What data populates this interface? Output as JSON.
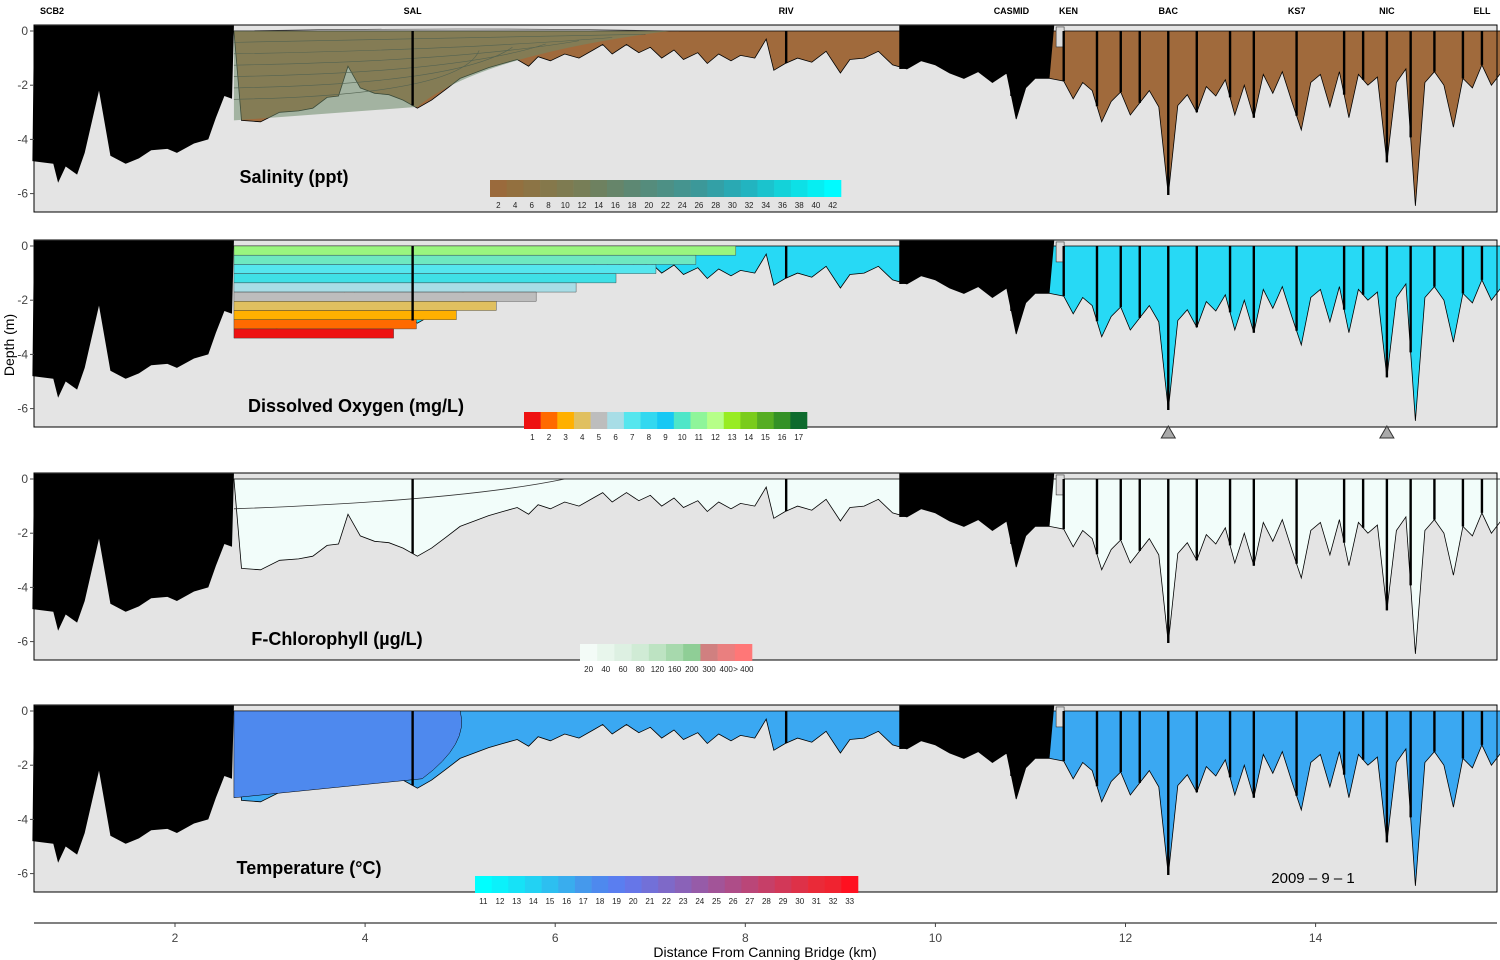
{
  "chart_data": {
    "type": "area",
    "xlabel": "Distance From Canning Bridge (km)",
    "ylabel": "Depth (m)",
    "xlim": [
      0.5,
      15.95
    ],
    "ylim": [
      -7,
      0.3
    ],
    "x_ticks": [
      "2",
      "4",
      "6",
      "8",
      "10",
      "12",
      "14"
    ],
    "x_tick_values": [
      2,
      4,
      6,
      8,
      10,
      12,
      14
    ],
    "y_ticks": [
      "0",
      "-2",
      "-4",
      "-6"
    ],
    "y_tick_values": [
      0,
      -2,
      -4,
      -6
    ],
    "date_label": "2009 – 9 – 1",
    "colors": {
      "background": "#e4e4e4",
      "mask": "#000000",
      "salinity_fresh": "#a06a3c",
      "oxygen_surface": "#27d9f5",
      "chlorophyll": "#f2fdfa",
      "temperature": "#3aa8f2"
    },
    "sites": [
      {
        "name": "SCB2",
        "km": 0.62
      },
      {
        "name": "SAL",
        "km": 4.5
      },
      {
        "name": "RIV",
        "km": 8.43
      },
      {
        "name": "CASMID",
        "km": 10.8
      },
      {
        "name": "KEN",
        "km": 11.4
      },
      {
        "name": "BAC",
        "km": 12.45
      },
      {
        "name": "KS7",
        "km": 13.8
      },
      {
        "name": "NIC",
        "km": 14.75
      },
      {
        "name": "ELL",
        "km": 15.75
      }
    ],
    "profiles_km": [
      4.5,
      8.43,
      10.8,
      11.35,
      11.7,
      11.95,
      12.15,
      12.45,
      12.75,
      13.1,
      13.35,
      13.8,
      14.3,
      14.5,
      14.75,
      15.0,
      15.25,
      15.55,
      15.75
    ],
    "panels": [
      {
        "id": "salinity",
        "title": "Salinity (ppt)",
        "colorbar_labels": [
          "2",
          "4",
          "6",
          "8",
          "10",
          "12",
          "14",
          "16",
          "18",
          "20",
          "22",
          "24",
          "26",
          "28",
          "30",
          "32",
          "34",
          "36",
          "38",
          "40",
          "42"
        ],
        "colorbar_colors": [
          "#9a6a3c",
          "#93703f",
          "#8c7445",
          "#85784b",
          "#7e7b51",
          "#777e57",
          "#6e8160",
          "#66856a",
          "#5d8873",
          "#558c7c",
          "#4d9085",
          "#45948f",
          "#3c9899",
          "#33a0a6",
          "#2aa9b3",
          "#22b4c0",
          "#1bc3cd",
          "#14d2d9",
          "#0de0e6",
          "#06eef2",
          "#00fbff"
        ]
      },
      {
        "id": "oxygen",
        "title": "Dissolved Oxygen (mg/L)",
        "colorbar_labels": [
          "1",
          "2",
          "3",
          "4",
          "5",
          "6",
          "7",
          "8",
          "9",
          "10",
          "11",
          "12",
          "13",
          "14",
          "15",
          "16",
          "17"
        ],
        "colorbar_colors": [
          "#ee1111",
          "#ff6a00",
          "#ffb000",
          "#e0c060",
          "#bdbdbd",
          "#a8dde6",
          "#55e6ee",
          "#33d8f0",
          "#17c8f4",
          "#4ee6c8",
          "#8ff59a",
          "#b6ff88",
          "#98ec22",
          "#7acc1c",
          "#56ad22",
          "#349126",
          "#0e6b2e"
        ]
      },
      {
        "id": "chlorophyll",
        "title": "F-Chlorophyll (µg/L)",
        "colorbar_labels": [
          "20",
          "40",
          "60",
          "80",
          "120",
          "160",
          "200",
          "300",
          "400",
          "> 400"
        ],
        "colorbar_colors": [
          "#f3fbf7",
          "#e8f6ec",
          "#ddf0e2",
          "#d0ebd5",
          "#bde3c2",
          "#a7d9ad",
          "#8fce96",
          "#d08080",
          "#ea7f7f",
          "#ff7777"
        ]
      },
      {
        "id": "temperature",
        "title": "Temperature (°C)",
        "colorbar_labels": [
          "11",
          "12",
          "13",
          "14",
          "15",
          "16",
          "17",
          "18",
          "19",
          "20",
          "21",
          "22",
          "23",
          "24",
          "25",
          "26",
          "27",
          "28",
          "29",
          "30",
          "31",
          "32",
          "33"
        ],
        "colorbar_colors": [
          "#00ffff",
          "#0bf1fb",
          "#16e2f7",
          "#22d2f3",
          "#2dbff0",
          "#39adee",
          "#4599ec",
          "#4e89ee",
          "#5a7ef0",
          "#6676e8",
          "#7270d8",
          "#7e69c8",
          "#8a62b8",
          "#965ba8",
          "#a25498",
          "#ae4d88",
          "#ba4678",
          "#c63f68",
          "#d23858",
          "#de3148",
          "#ea2a38",
          "#f02330",
          "#ff1020"
        ]
      }
    ]
  }
}
